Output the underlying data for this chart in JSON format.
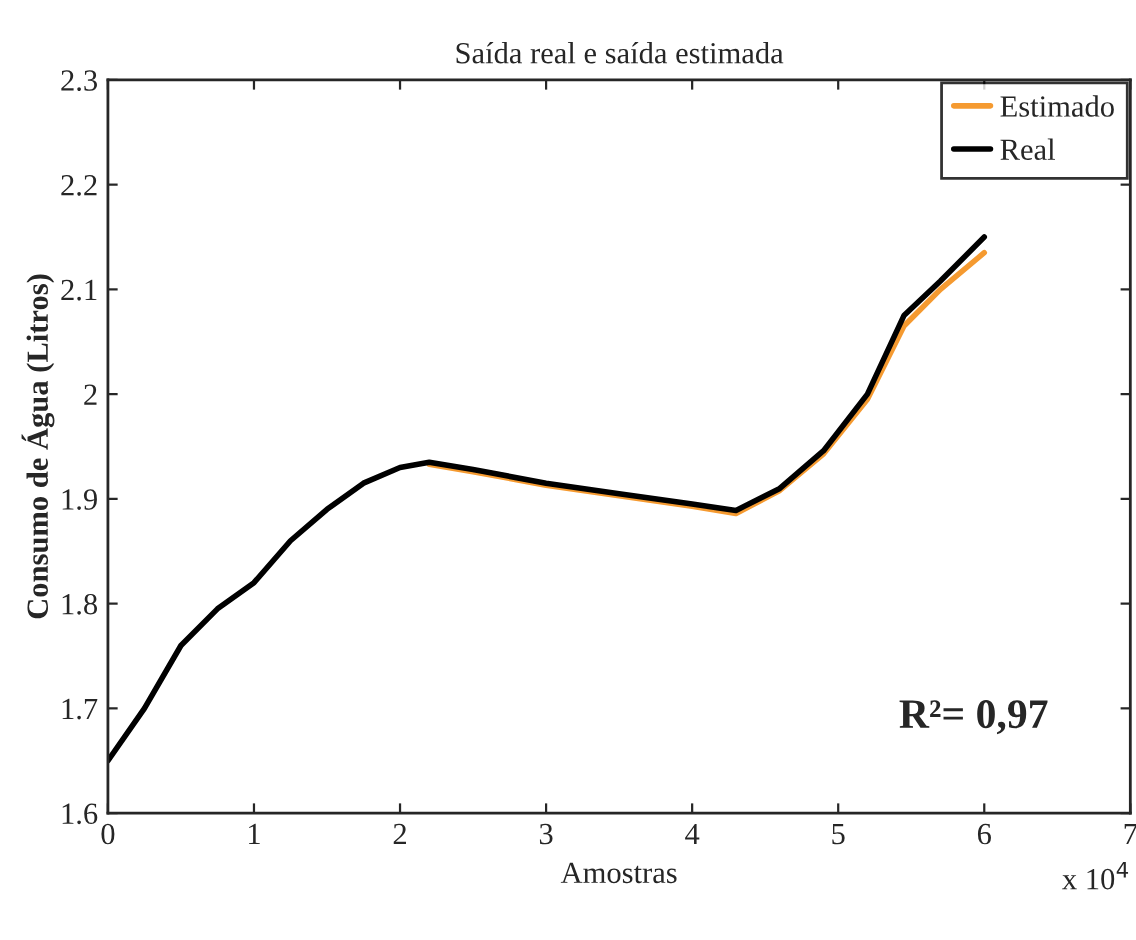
{
  "chart_data": {
    "type": "line",
    "title": "Saída real e saída estimada",
    "xlabel": "Amostras",
    "ylabel": "Consumo de Água (Litros)",
    "annotations": [
      "R²= 0,97",
      "x 10$^{4}$"
    ],
    "xlim": [
      0,
      7
    ],
    "ylim": [
      1.6,
      2.3
    ],
    "xticks": [
      0,
      1,
      2,
      3,
      4,
      5,
      6,
      7
    ],
    "yticks": [
      1.6,
      1.7,
      1.8,
      1.9,
      2,
      2.1,
      2.2,
      2.3
    ],
    "grid": false,
    "legend": "top right",
    "line_style": "solid",
    "marker": "none",
    "x": [
      0,
      0.25,
      0.5,
      0.75,
      1,
      1.25,
      1.5,
      1.75,
      2,
      2.2,
      2.5,
      3,
      3.5,
      4,
      4.3,
      4.6,
      4.9,
      5.2,
      5.45,
      5.7,
      6
    ],
    "series": [
      {
        "name": "Estimado",
        "color": "#f59a30",
        "values": [
          null,
          null,
          null,
          null,
          null,
          null,
          null,
          null,
          null,
          1.933,
          1.926,
          1.913,
          1.903,
          1.893,
          1.886,
          1.908,
          1.943,
          1.995,
          2.065,
          2.1,
          2.135
        ]
      },
      {
        "name": "Real",
        "color": "#000000",
        "values": [
          1.65,
          1.7,
          1.76,
          1.795,
          1.82,
          1.86,
          1.89,
          1.915,
          1.93,
          1.935,
          1.928,
          1.915,
          1.905,
          1.895,
          1.889,
          1.91,
          1.946,
          2.0,
          2.075,
          2.108,
          2.15
        ]
      }
    ]
  }
}
